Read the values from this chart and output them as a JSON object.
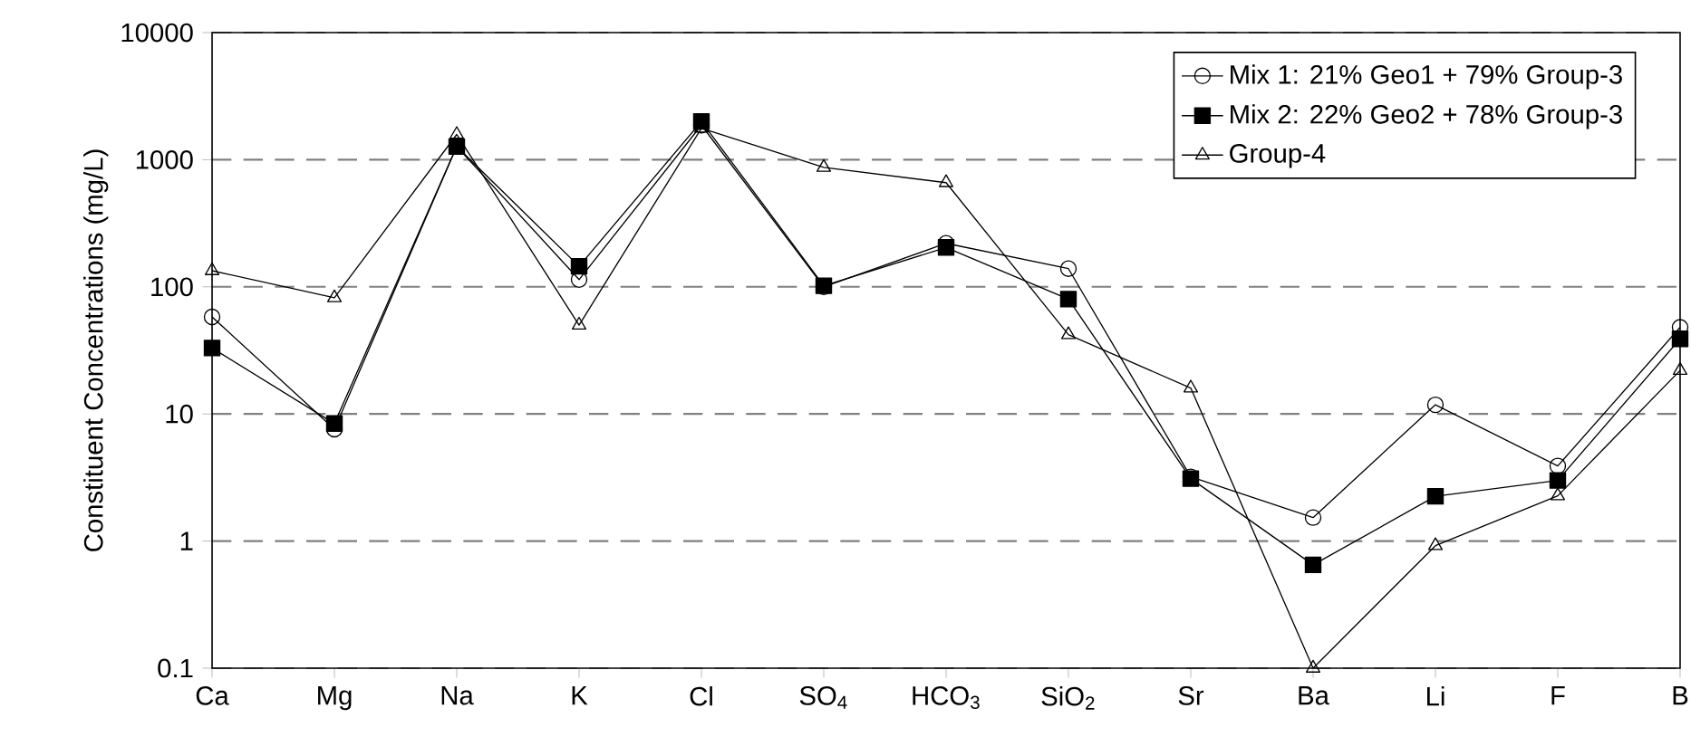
{
  "chart_data": {
    "type": "line",
    "ylabel": "Constituent Concentrations (mg/L)",
    "categories": [
      "Ca",
      "Mg",
      "Na",
      "K",
      "Cl",
      "SO$_{4}$",
      "HCO$_{3}$",
      "SiO$_{2}$",
      "Sr",
      "Ba",
      "Li",
      "F",
      "B"
    ],
    "series": [
      {
        "name": "Mix 1: 21% Geo1 + 79% Group-3",
        "color": "#000000",
        "marker": "circle",
        "values": [
          58,
          7.6,
          1270,
          114,
          1870,
          100,
          220,
          139,
          3.2,
          1.53,
          11.8,
          3.9,
          48
        ]
      },
      {
        "name": "Mix 2: 22% Geo2 + 78% Group-3",
        "color": "#000000",
        "marker": "square",
        "values": [
          33,
          8.4,
          1270,
          145,
          2000,
          102,
          204,
          80,
          3.1,
          0.65,
          2.25,
          3.0,
          39
        ]
      },
      {
        "name": "Group-4",
        "color": "#000000",
        "marker": "triangle",
        "values": [
          134,
          82,
          1580,
          50,
          1770,
          870,
          660,
          42,
          16,
          0.1,
          0.92,
          2.27,
          22
        ]
      }
    ],
    "log": "y",
    "ylim": [
      0.1,
      10000
    ],
    "yticks": [
      0.1,
      1,
      10,
      100,
      1000,
      10000
    ],
    "grid": "y",
    "legend": "top right",
    "line_style": "solid"
  }
}
